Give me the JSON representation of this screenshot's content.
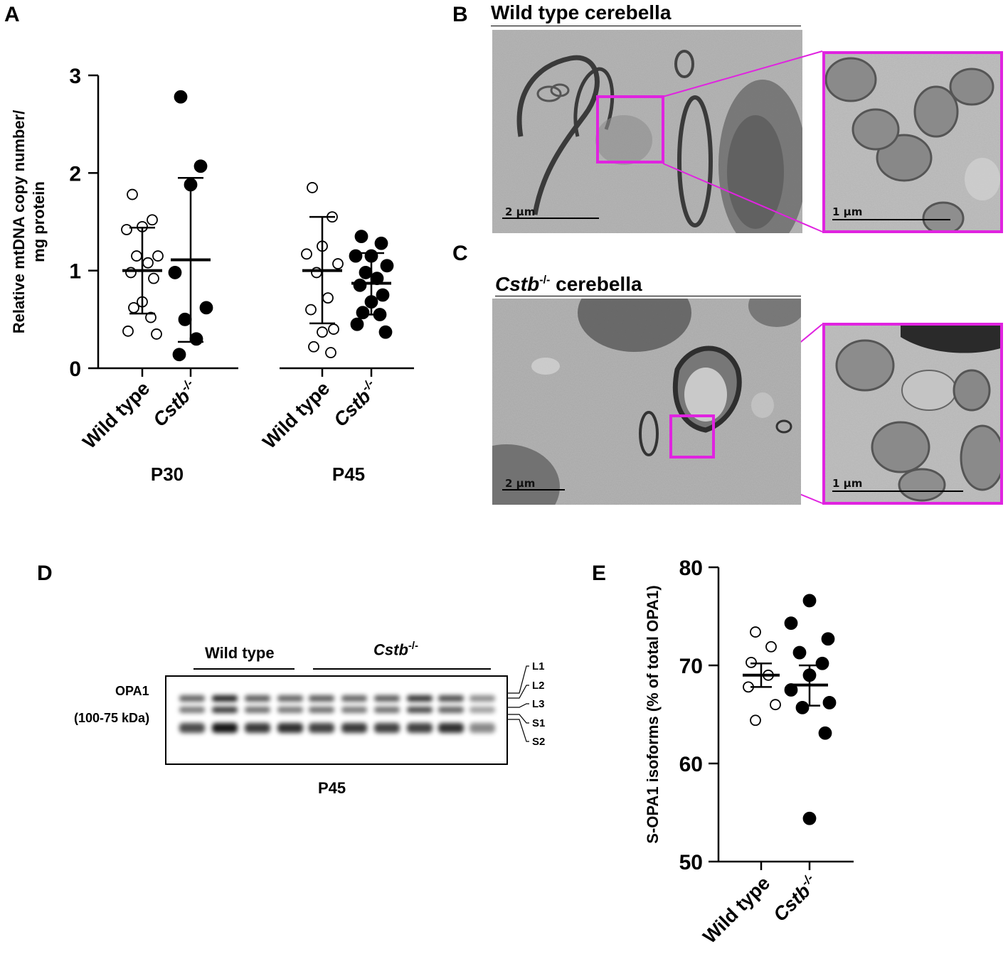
{
  "panels": {
    "a": {
      "letter": "A"
    },
    "b": {
      "letter": "B",
      "title": "Wild type cerebella",
      "scale_main": "2  μm",
      "scale_zoom": "1 μm"
    },
    "c": {
      "letter": "C",
      "title_gene": "Cstb",
      "title_sup": "-/-",
      "title_rest": " cerebella",
      "scale_main": "2  μm",
      "scale_zoom": "1 μm"
    },
    "d": {
      "letter": "D",
      "group_wt": "Wild type",
      "group_ko": "Cstb",
      "group_ko_sup": "-/-",
      "protein": "OPA1",
      "kda": "(100-75 kDa)",
      "age": "P45",
      "isoforms": [
        "L1",
        "L2",
        "L3",
        "S1",
        "S2"
      ]
    },
    "e": {
      "letter": "E"
    }
  },
  "chart_data": [
    {
      "type": "scatter",
      "panel": "A",
      "ylabel": "Relative mtDNA copy number/ mg protein",
      "ylim": [
        0,
        3
      ],
      "yticks": [
        "0",
        "1",
        "2",
        "3"
      ],
      "groups": [
        {
          "label": "P30",
          "categories": [
            "Wild type",
            "Cstb-/-"
          ]
        },
        {
          "label": "P45",
          "categories": [
            "Wild type",
            "Cstb-/-"
          ]
        }
      ],
      "tick_labels": {
        "wt": "Wild type",
        "ko": "Cstb",
        "ko_sup": "-/-"
      },
      "series": [
        {
          "group": "P30",
          "genotype": "Wild type",
          "fill": "#ffffff",
          "values": [
            1.78,
            1.52,
            1.45,
            1.42,
            1.15,
            1.15,
            1.08,
            0.98,
            0.92,
            0.68,
            0.62,
            0.52,
            0.38,
            0.35
          ],
          "mean": 1.0,
          "sd_low": 0.56,
          "sd_high": 1.44
        },
        {
          "group": "P30",
          "genotype": "Cstb-/-",
          "fill": "#000000",
          "values": [
            2.78,
            2.07,
            1.88,
            0.98,
            0.62,
            0.5,
            0.3,
            0.14
          ],
          "mean": 1.11,
          "sd_low": 0.27,
          "sd_high": 1.95
        },
        {
          "group": "P45",
          "genotype": "Wild type",
          "fill": "#ffffff",
          "values": [
            1.85,
            1.55,
            1.25,
            1.17,
            1.07,
            0.98,
            0.72,
            0.6,
            0.4,
            0.37,
            0.22,
            0.16
          ],
          "mean": 1.0,
          "sd_low": 0.46,
          "sd_high": 1.55
        },
        {
          "group": "P45",
          "genotype": "Cstb-/-",
          "fill": "#000000",
          "values": [
            1.35,
            1.28,
            1.15,
            1.15,
            1.05,
            0.98,
            0.92,
            0.85,
            0.75,
            0.68,
            0.57,
            0.55,
            0.45,
            0.37
          ],
          "mean": 0.87,
          "sd_low": 0.55,
          "sd_high": 1.18
        }
      ]
    },
    {
      "type": "scatter",
      "panel": "E",
      "ylabel": "S-OPA1 isoforms (% of total OPA1)",
      "ylim": [
        50,
        80
      ],
      "yticks": [
        "50",
        "60",
        "70",
        "80"
      ],
      "categories": [
        "Wild type",
        "Cstb-/-"
      ],
      "tick_labels": {
        "wt": "Wild type",
        "ko": "Cstb",
        "ko_sup": "-/-"
      },
      "series": [
        {
          "genotype": "Wild type",
          "fill": "#ffffff",
          "values": [
            73.4,
            71.9,
            70.3,
            69.0,
            67.8,
            66.0,
            64.4
          ],
          "mean": 69.0,
          "sem_low": 67.8,
          "sem_high": 70.2
        },
        {
          "genotype": "Cstb-/-",
          "fill": "#000000",
          "values": [
            76.6,
            74.3,
            72.7,
            71.3,
            70.2,
            69.0,
            67.5,
            66.2,
            65.7,
            63.1,
            54.4
          ],
          "mean": 68.0,
          "sem_low": 65.9,
          "sem_high": 70.0
        }
      ]
    }
  ],
  "blot": {
    "lanes": 10,
    "lane_group": [
      "Wild type",
      "Wild type",
      "Wild type",
      "Wild type",
      "Cstb-/-",
      "Cstb-/-",
      "Cstb-/-",
      "Cstb-/-",
      "Cstb-/-",
      "Cstb-/-"
    ],
    "upper_band_intensity": [
      0.55,
      0.95,
      0.6,
      0.55,
      0.6,
      0.55,
      0.6,
      0.85,
      0.7,
      0.3
    ],
    "lower_band_intensity": [
      0.65,
      0.95,
      0.75,
      0.8,
      0.7,
      0.75,
      0.7,
      0.7,
      0.8,
      0.3
    ]
  }
}
